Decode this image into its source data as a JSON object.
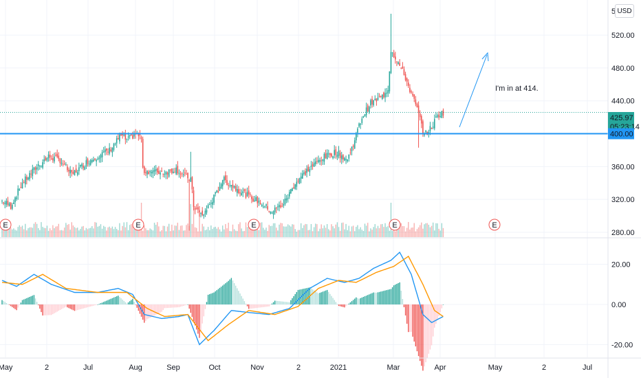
{
  "currency": "USD",
  "annotation": "I'm in at 414.",
  "price_tags": {
    "last": "425.97",
    "countdown": "05:23:14",
    "level": "400.00"
  },
  "colors": {
    "up": "#26a69a",
    "down": "#ef5350",
    "level_line": "#2196f3",
    "annotation": "#2196f3",
    "macd": "#2196f3",
    "signal": "#ff9800",
    "tag_last": "#26a69a",
    "tag_level": "#2196f3"
  },
  "chart_data": [
    {
      "type": "candlestick",
      "title": "",
      "x_ticks": [
        "May",
        "2",
        "Jul",
        "Aug",
        "Sep",
        "Oct",
        "Nov",
        "2",
        "2021",
        "Mar",
        "Apr",
        "May",
        "2",
        "Jul"
      ],
      "ylim": [
        274,
        546
      ],
      "y_ticks": [
        "520.00",
        "480.00",
        "440.00",
        "360.00",
        "320.00",
        "280.00"
      ],
      "horizontal_level": 400,
      "last_price": 425.97,
      "earnings_markers": [
        "E",
        "E",
        "E",
        "E",
        "E"
      ],
      "close_anchors": [
        {
          "t": 0,
          "v": 318
        },
        {
          "t": 6,
          "v": 312
        },
        {
          "t": 14,
          "v": 340
        },
        {
          "t": 24,
          "v": 360
        },
        {
          "t": 32,
          "v": 372
        },
        {
          "t": 40,
          "v": 368
        },
        {
          "t": 48,
          "v": 350
        },
        {
          "t": 58,
          "v": 365
        },
        {
          "t": 66,
          "v": 373
        },
        {
          "t": 74,
          "v": 380
        },
        {
          "t": 82,
          "v": 398
        },
        {
          "t": 86,
          "v": 392
        },
        {
          "t": 92,
          "v": 400
        },
        {
          "t": 96,
          "v": 395
        },
        {
          "t": 97,
          "v": 355
        },
        {
          "t": 112,
          "v": 353
        },
        {
          "t": 120,
          "v": 357
        },
        {
          "t": 126,
          "v": 348
        },
        {
          "t": 130,
          "v": 345
        },
        {
          "t": 132,
          "v": 312
        },
        {
          "t": 138,
          "v": 300
        },
        {
          "t": 148,
          "v": 328
        },
        {
          "t": 152,
          "v": 345
        },
        {
          "t": 160,
          "v": 335
        },
        {
          "t": 170,
          "v": 324
        },
        {
          "t": 178,
          "v": 316
        },
        {
          "t": 186,
          "v": 305
        },
        {
          "t": 194,
          "v": 315
        },
        {
          "t": 202,
          "v": 340
        },
        {
          "t": 210,
          "v": 355
        },
        {
          "t": 220,
          "v": 370
        },
        {
          "t": 230,
          "v": 378
        },
        {
          "t": 238,
          "v": 368
        },
        {
          "t": 242,
          "v": 388
        },
        {
          "t": 248,
          "v": 420
        },
        {
          "t": 254,
          "v": 437
        },
        {
          "t": 262,
          "v": 445
        },
        {
          "t": 266,
          "v": 455
        },
        {
          "t": 268,
          "v": 502
        },
        {
          "t": 272,
          "v": 490
        },
        {
          "t": 278,
          "v": 468
        },
        {
          "t": 286,
          "v": 430
        },
        {
          "t": 291,
          "v": 398
        },
        {
          "t": 296,
          "v": 408
        },
        {
          "t": 300,
          "v": 422
        },
        {
          "t": 304,
          "v": 426
        }
      ],
      "spikes": [
        {
          "t": 268,
          "high": 546
        },
        {
          "t": 130,
          "high": 378
        },
        {
          "t": 129,
          "low": 282
        },
        {
          "t": 287,
          "low": 383
        }
      ]
    },
    {
      "type": "macd",
      "ylim": [
        -22,
        26
      ],
      "y_ticks": [
        "20.00",
        "0.00",
        "-20.00"
      ],
      "macd_anchors": [
        {
          "t": 0,
          "v": 12
        },
        {
          "t": 10,
          "v": 9
        },
        {
          "t": 22,
          "v": 15
        },
        {
          "t": 34,
          "v": 10
        },
        {
          "t": 50,
          "v": 6
        },
        {
          "t": 66,
          "v": 6
        },
        {
          "t": 80,
          "v": 8
        },
        {
          "t": 90,
          "v": 5
        },
        {
          "t": 98,
          "v": -5
        },
        {
          "t": 110,
          "v": -7
        },
        {
          "t": 122,
          "v": -6
        },
        {
          "t": 128,
          "v": -5
        },
        {
          "t": 136,
          "v": -20
        },
        {
          "t": 146,
          "v": -13
        },
        {
          "t": 158,
          "v": -3
        },
        {
          "t": 170,
          "v": -4
        },
        {
          "t": 184,
          "v": -5
        },
        {
          "t": 198,
          "v": -2
        },
        {
          "t": 212,
          "v": 8
        },
        {
          "t": 224,
          "v": 13
        },
        {
          "t": 236,
          "v": 11
        },
        {
          "t": 246,
          "v": 13
        },
        {
          "t": 256,
          "v": 18
        },
        {
          "t": 268,
          "v": 22
        },
        {
          "t": 274,
          "v": 26
        },
        {
          "t": 282,
          "v": 15
        },
        {
          "t": 290,
          "v": -5
        },
        {
          "t": 296,
          "v": -9
        },
        {
          "t": 304,
          "v": -6
        }
      ],
      "signal_anchors": [
        {
          "t": 0,
          "v": 11
        },
        {
          "t": 14,
          "v": 10
        },
        {
          "t": 28,
          "v": 15
        },
        {
          "t": 44,
          "v": 8
        },
        {
          "t": 66,
          "v": 6
        },
        {
          "t": 86,
          "v": 6
        },
        {
          "t": 100,
          "v": -2
        },
        {
          "t": 112,
          "v": -6
        },
        {
          "t": 128,
          "v": -5
        },
        {
          "t": 142,
          "v": -18
        },
        {
          "t": 156,
          "v": -10
        },
        {
          "t": 170,
          "v": -3
        },
        {
          "t": 188,
          "v": -5
        },
        {
          "t": 204,
          "v": -1
        },
        {
          "t": 218,
          "v": 8
        },
        {
          "t": 232,
          "v": 12
        },
        {
          "t": 244,
          "v": 11
        },
        {
          "t": 258,
          "v": 16
        },
        {
          "t": 270,
          "v": 19
        },
        {
          "t": 280,
          "v": 24
        },
        {
          "t": 290,
          "v": 10
        },
        {
          "t": 298,
          "v": -3
        },
        {
          "t": 304,
          "v": -6
        }
      ]
    }
  ]
}
